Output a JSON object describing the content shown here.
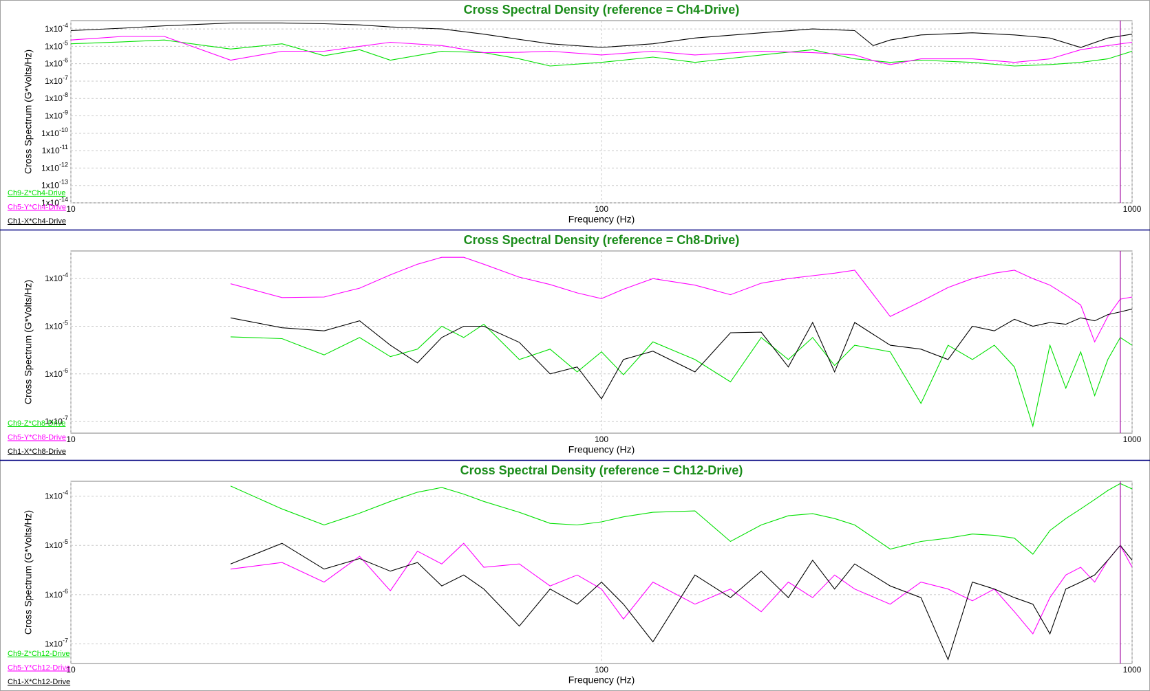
{
  "chart_data": [
    {
      "type": "line",
      "title": "Cross Spectral Density (reference = Ch4-Drive)",
      "title_color": "#1a8c1a",
      "x_label": "Frequency (Hz)",
      "y_label": "Cross Spectrum (G*Volts/Hz)",
      "log_x": true,
      "log_y": true,
      "grid": true,
      "legend": "bottom-left",
      "xlim": [
        10,
        1000
      ],
      "xticks": [
        10,
        100,
        1000
      ],
      "ylim": [
        1e-14,
        0.0003
      ],
      "yticks": [
        {
          "value": 0.0001,
          "label": "1x10",
          "exponent": "-4"
        },
        {
          "value": 1e-05,
          "label": "1x10",
          "exponent": "-5"
        },
        {
          "value": 1e-06,
          "label": "1x10",
          "exponent": "-6"
        },
        {
          "value": 1e-07,
          "label": "1x10",
          "exponent": "-7"
        },
        {
          "value": 1e-08,
          "label": "1x10",
          "exponent": "-8"
        },
        {
          "value": 1e-09,
          "label": "1x10",
          "exponent": "-9"
        },
        {
          "value": 1e-10,
          "label": "1x10",
          "exponent": "-10"
        },
        {
          "value": 1e-11,
          "label": "1x10",
          "exponent": "-11"
        },
        {
          "value": 1e-12,
          "label": "1x10",
          "exponent": "-12"
        },
        {
          "value": 1e-13,
          "label": "1x10",
          "exponent": "-13"
        },
        {
          "value": 1e-14,
          "label": "1x10",
          "exponent": "-14"
        }
      ],
      "cursor_x": 950,
      "cursor_color": "#a000a0",
      "x": [
        10,
        12.5,
        15,
        20,
        25,
        30,
        35,
        40,
        50,
        60,
        70,
        80,
        100,
        125,
        150,
        200,
        250,
        300,
        325,
        350,
        400,
        500,
        600,
        700,
        800,
        900,
        1000
      ],
      "series": [
        {
          "name": "Ch9-Z*Ch4-Drive",
          "color": "#00e000",
          "values": [
            1.4e-05,
            1.8e-05,
            2.3e-05,
            7e-06,
            1.4e-05,
            2.9e-06,
            6.4e-06,
            1.6e-06,
            5.2e-06,
            4.3e-06,
            1.9e-06,
            7.4e-07,
            1.2e-06,
            2.4e-06,
            1.2e-06,
            3.2e-06,
            6.4e-06,
            1.9e-06,
            1.5e-06,
            1.2e-06,
            1.6e-06,
            1.2e-06,
            7.4e-07,
            8.9e-07,
            1.2e-06,
            1.9e-06,
            5.2e-06
          ]
        },
        {
          "name": "Ch5-Y*Ch4-Drive",
          "color": "#ff00ff",
          "values": [
            2.3e-05,
            3.7e-05,
            3.7e-05,
            1.6e-06,
            5.2e-06,
            5.2e-06,
            1e-05,
            1.7e-05,
            1.1e-05,
            4.3e-06,
            4.5e-06,
            5.2e-06,
            3.2e-06,
            5.2e-06,
            3.2e-06,
            5.2e-06,
            4.3e-06,
            3.2e-06,
            1.5e-06,
            8.9e-07,
            1.9e-06,
            1.9e-06,
            1.2e-06,
            1.9e-06,
            6.4e-06,
            1.1e-05,
            1.7e-05
          ]
        },
        {
          "name": "Ch1-X*Ch4-Drive",
          "color": "#000000",
          "values": [
            8e-05,
            0.00011,
            0.00015,
            0.00022,
            0.00022,
            0.0002,
            0.00017,
            0.00013,
            0.0001,
            5e-05,
            2.5e-05,
            1.4e-05,
            8.6e-06,
            1.4e-05,
            3e-05,
            6e-05,
            0.0001,
            8e-05,
            1.1e-05,
            2.3e-05,
            4.5e-05,
            6e-05,
            4.5e-05,
            3e-05,
            8.6e-06,
            3e-05,
            5e-05
          ]
        }
      ]
    },
    {
      "type": "line",
      "title": "Cross Spectral Density (reference = Ch8-Drive)",
      "title_color": "#1a8c1a",
      "x_label": "Frequency (Hz)",
      "y_label": "Cross Spectrum (G*Volts/Hz)",
      "log_x": true,
      "log_y": true,
      "grid": true,
      "legend": "bottom-left",
      "xlim": [
        10,
        1000
      ],
      "xticks": [
        10,
        100,
        1000
      ],
      "ylim": [
        5.7e-08,
        0.00038
      ],
      "yticks": [
        {
          "value": 0.0001,
          "label": "1x10",
          "exponent": "-4"
        },
        {
          "value": 1e-05,
          "label": "1x10",
          "exponent": "-5"
        },
        {
          "value": 1e-06,
          "label": "1x10",
          "exponent": "-6"
        },
        {
          "value": 1e-07,
          "label": "1x10",
          "exponent": "-7"
        }
      ],
      "cursor_x": 950,
      "cursor_color": "#a000a0",
      "x": [
        20,
        25,
        30,
        35,
        40,
        45,
        50,
        55,
        60,
        70,
        80,
        90,
        100,
        110,
        125,
        150,
        175,
        200,
        225,
        250,
        275,
        300,
        350,
        400,
        450,
        500,
        550,
        600,
        650,
        700,
        750,
        800,
        850,
        900,
        950,
        1000
      ],
      "series": [
        {
          "name": "Ch9-Z*Ch8-Drive",
          "color": "#00e000",
          "values": [
            6e-06,
            5.5e-06,
            2.5e-06,
            5.8e-06,
            2.3e-06,
            3.3e-06,
            1e-05,
            5.8e-06,
            1.1e-05,
            2e-06,
            3.3e-06,
            1.1e-06,
            2.9e-06,
            9.6e-07,
            4.7e-06,
            2e-06,
            6.8e-07,
            5.8e-06,
            2e-06,
            5.8e-06,
            1.5e-06,
            4e-06,
            2.9e-06,
            2.4e-07,
            4e-06,
            2e-06,
            4e-06,
            1.4e-06,
            8e-08,
            4e-06,
            5e-07,
            2.9e-06,
            3.5e-07,
            2e-06,
            5.8e-06,
            4e-06
          ]
        },
        {
          "name": "Ch5-Y*Ch8-Drive",
          "color": "#ff00ff",
          "values": [
            7.8e-05,
            4e-05,
            4.1e-05,
            6.3e-05,
            0.00012,
            0.0002,
            0.00028,
            0.00028,
            0.0002,
            0.000107,
            7.5e-05,
            5e-05,
            3.8e-05,
            6e-05,
            0.0001,
            7.3e-05,
            4.6e-05,
            8e-05,
            0.0001,
            0.000115,
            0.00013,
            0.00015,
            1.6e-05,
            3.3e-05,
            6.5e-05,
            0.0001,
            0.00013,
            0.00015,
            0.0001,
            7.3e-05,
            4.5e-05,
            2.8e-05,
            4.7e-06,
            1.6e-05,
            3.7e-05,
            4.1e-05
          ]
        },
        {
          "name": "Ch1-X*Ch8-Drive",
          "color": "#000000",
          "values": [
            1.5e-05,
            9.3e-06,
            8e-06,
            1.3e-05,
            4e-06,
            1.7e-06,
            5.8e-06,
            1e-05,
            1e-05,
            4.6e-06,
            1e-06,
            1.4e-06,
            3e-07,
            2e-06,
            3e-06,
            1.1e-06,
            7.3e-06,
            7.5e-06,
            1.4e-06,
            1.2e-05,
            1.1e-06,
            1.2e-05,
            4e-06,
            3.3e-06,
            2e-06,
            1e-05,
            8e-06,
            1.4e-05,
            1e-05,
            1.2e-05,
            1.1e-05,
            1.5e-05,
            1.3e-05,
            1.75e-05,
            2e-05,
            2.3e-05
          ]
        }
      ]
    },
    {
      "type": "line",
      "title": "Cross Spectral Density (reference = Ch12-Drive)",
      "title_color": "#1a8c1a",
      "x_label": "Frequency (Hz)",
      "y_label": "Cross Spectrum (G*Volts/Hz)",
      "log_x": true,
      "log_y": true,
      "grid": true,
      "legend": "bottom-left",
      "xlim": [
        10,
        1000
      ],
      "xticks": [
        10,
        100,
        1000
      ],
      "ylim": [
        4e-08,
        0.0002
      ],
      "yticks": [
        {
          "value": 0.0001,
          "label": "1x10",
          "exponent": "-4"
        },
        {
          "value": 1e-05,
          "label": "1x10",
          "exponent": "-5"
        },
        {
          "value": 1e-06,
          "label": "1x10",
          "exponent": "-6"
        },
        {
          "value": 1e-07,
          "label": "1x10",
          "exponent": "-7"
        }
      ],
      "cursor_x": 950,
      "cursor_color": "#a000a0",
      "x": [
        20,
        25,
        30,
        35,
        40,
        45,
        50,
        55,
        60,
        70,
        80,
        90,
        100,
        110,
        125,
        150,
        175,
        200,
        225,
        250,
        275,
        300,
        350,
        400,
        450,
        500,
        550,
        600,
        650,
        700,
        750,
        800,
        850,
        900,
        950,
        1000
      ],
      "series": [
        {
          "name": "Ch9-Z*Ch12-Drive",
          "color": "#00e000",
          "values": [
            0.00016,
            5.5e-05,
            2.6e-05,
            4.5e-05,
            7.8e-05,
            0.00012,
            0.00015,
            0.00011,
            7.8e-05,
            4.7e-05,
            2.8e-05,
            2.6e-05,
            3e-05,
            3.8e-05,
            4.7e-05,
            5e-05,
            1.2e-05,
            2.6e-05,
            4e-05,
            4.4e-05,
            3.5e-05,
            2.6e-05,
            8.4e-06,
            1.2e-05,
            1.4e-05,
            1.7e-05,
            1.6e-05,
            1.4e-05,
            6.6e-06,
            2e-05,
            3.5e-05,
            5.5e-05,
            8.5e-05,
            0.00013,
            0.00018,
            0.00014
          ]
        },
        {
          "name": "Ch5-Y*Ch12-Drive",
          "color": "#ff00ff",
          "values": [
            3.3e-06,
            4.5e-06,
            1.8e-06,
            6e-06,
            1.2e-06,
            7.6e-06,
            4.2e-06,
            1.1e-05,
            3.6e-06,
            4.2e-06,
            1.5e-06,
            2.5e-06,
            1.3e-06,
            3.2e-07,
            1.8e-06,
            6.4e-07,
            1.3e-06,
            4.5e-07,
            1.8e-06,
            8.7e-07,
            2.5e-06,
            1.3e-06,
            6.4e-07,
            1.8e-06,
            1.3e-06,
            7.5e-07,
            1.3e-06,
            4.5e-07,
            1.6e-07,
            8.7e-07,
            2.5e-06,
            3.6e-06,
            1.8e-06,
            5e-06,
            1e-05,
            3.6e-06
          ]
        },
        {
          "name": "Ch1-X*Ch12-Drive",
          "color": "#000000",
          "values": [
            4.2e-06,
            1.1e-05,
            3.3e-06,
            5.4e-06,
            3e-06,
            4.5e-06,
            1.5e-06,
            2.5e-06,
            1.3e-06,
            2.3e-07,
            1.3e-06,
            6.4e-07,
            1.8e-06,
            6.4e-07,
            1.1e-07,
            2.5e-06,
            8.7e-07,
            3e-06,
            8.7e-07,
            5e-06,
            1.3e-06,
            4.2e-06,
            1.5e-06,
            8.7e-07,
            4.8e-08,
            1.8e-06,
            1.3e-06,
            8.7e-07,
            6.4e-07,
            1.6e-07,
            1.3e-06,
            1.8e-06,
            2.5e-06,
            5e-06,
            1e-05,
            5e-06
          ]
        }
      ]
    }
  ]
}
